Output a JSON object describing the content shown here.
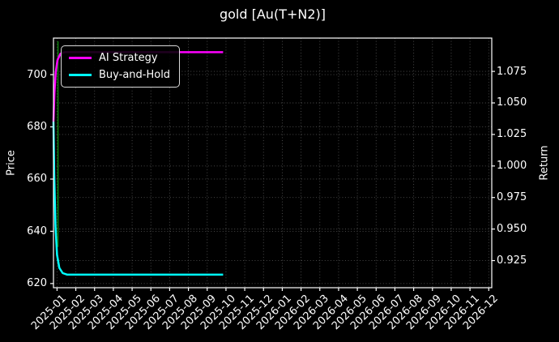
{
  "chart_data": {
    "type": "line",
    "title": "gold [Au(T+N2)]",
    "background_color": "#000000",
    "text_color": "#ffffff",
    "grid": {
      "on": true,
      "style": "dotted",
      "color": "#4f4f4f"
    },
    "x_axis": {
      "tick_labels": [
        "2025-01",
        "2025-02",
        "2025-03",
        "2025-04",
        "2025-05",
        "2025-06",
        "2025-07",
        "2025-08",
        "2025-09",
        "2025-10",
        "2025-11",
        "2025-12",
        "2026-01",
        "2026-02",
        "2026-03",
        "2026-04",
        "2026-05",
        "2026-06",
        "2026-07",
        "2026-08",
        "2026-09",
        "2026-10",
        "2026-11",
        "2026-12"
      ],
      "range_in_tick_units": [
        -0.19,
        23.16
      ],
      "label_rotation_deg": 45
    },
    "left_axis": {
      "label": "Price",
      "ticks": [
        {
          "label": "700",
          "value": 700
        },
        {
          "label": "680",
          "value": 680
        },
        {
          "label": "660",
          "value": 660
        },
        {
          "label": "640",
          "value": 640
        },
        {
          "label": "620",
          "value": 620
        }
      ],
      "range": [
        618.4,
        714.0
      ]
    },
    "right_axis": {
      "label": "Return",
      "ticks": [
        {
          "label": "1.075",
          "value": 1.075
        },
        {
          "label": "1.050",
          "value": 1.05
        },
        {
          "label": "1.025",
          "value": 1.025
        },
        {
          "label": "1.000",
          "value": 1.0
        },
        {
          "label": "0.975",
          "value": 0.975
        },
        {
          "label": "0.950",
          "value": 0.95
        },
        {
          "label": "0.925",
          "value": 0.925
        }
      ],
      "range": [
        0.9035,
        1.1014
      ]
    },
    "legend": {
      "position": "upper-left",
      "items": [
        {
          "label": "AI Strategy",
          "color": "#ff00ff"
        },
        {
          "label": "Buy-and-Hold",
          "color": "#00ffff"
        }
      ]
    },
    "series": [
      {
        "name": "AI Strategy",
        "color": "#ff00ff",
        "axis": "left",
        "line_width": 2.5,
        "points": [
          [
            -0.19,
            682
          ],
          [
            -0.14,
            693
          ],
          [
            -0.07,
            701
          ],
          [
            0.02,
            705.5
          ],
          [
            0.18,
            708
          ],
          [
            0.4,
            708.6
          ],
          [
            8.85,
            708.6
          ]
        ]
      },
      {
        "name": "Buy-and-Hold",
        "color": "#00ffff",
        "axis": "left",
        "line_width": 2.5,
        "points": [
          [
            -0.19,
            682
          ],
          [
            -0.15,
            662
          ],
          [
            -0.08,
            642
          ],
          [
            0.0,
            631
          ],
          [
            0.12,
            626
          ],
          [
            0.3,
            624
          ],
          [
            0.55,
            623.4
          ],
          [
            8.85,
            623.4
          ]
        ]
      }
    ],
    "markers": [
      {
        "name": "trade-signal-vline",
        "type": "vertical-segment",
        "x": 0.05,
        "from_price": 712.8,
        "to_price": 634.0,
        "color": "#0b7a0b",
        "line_width": 1.6
      }
    ]
  }
}
